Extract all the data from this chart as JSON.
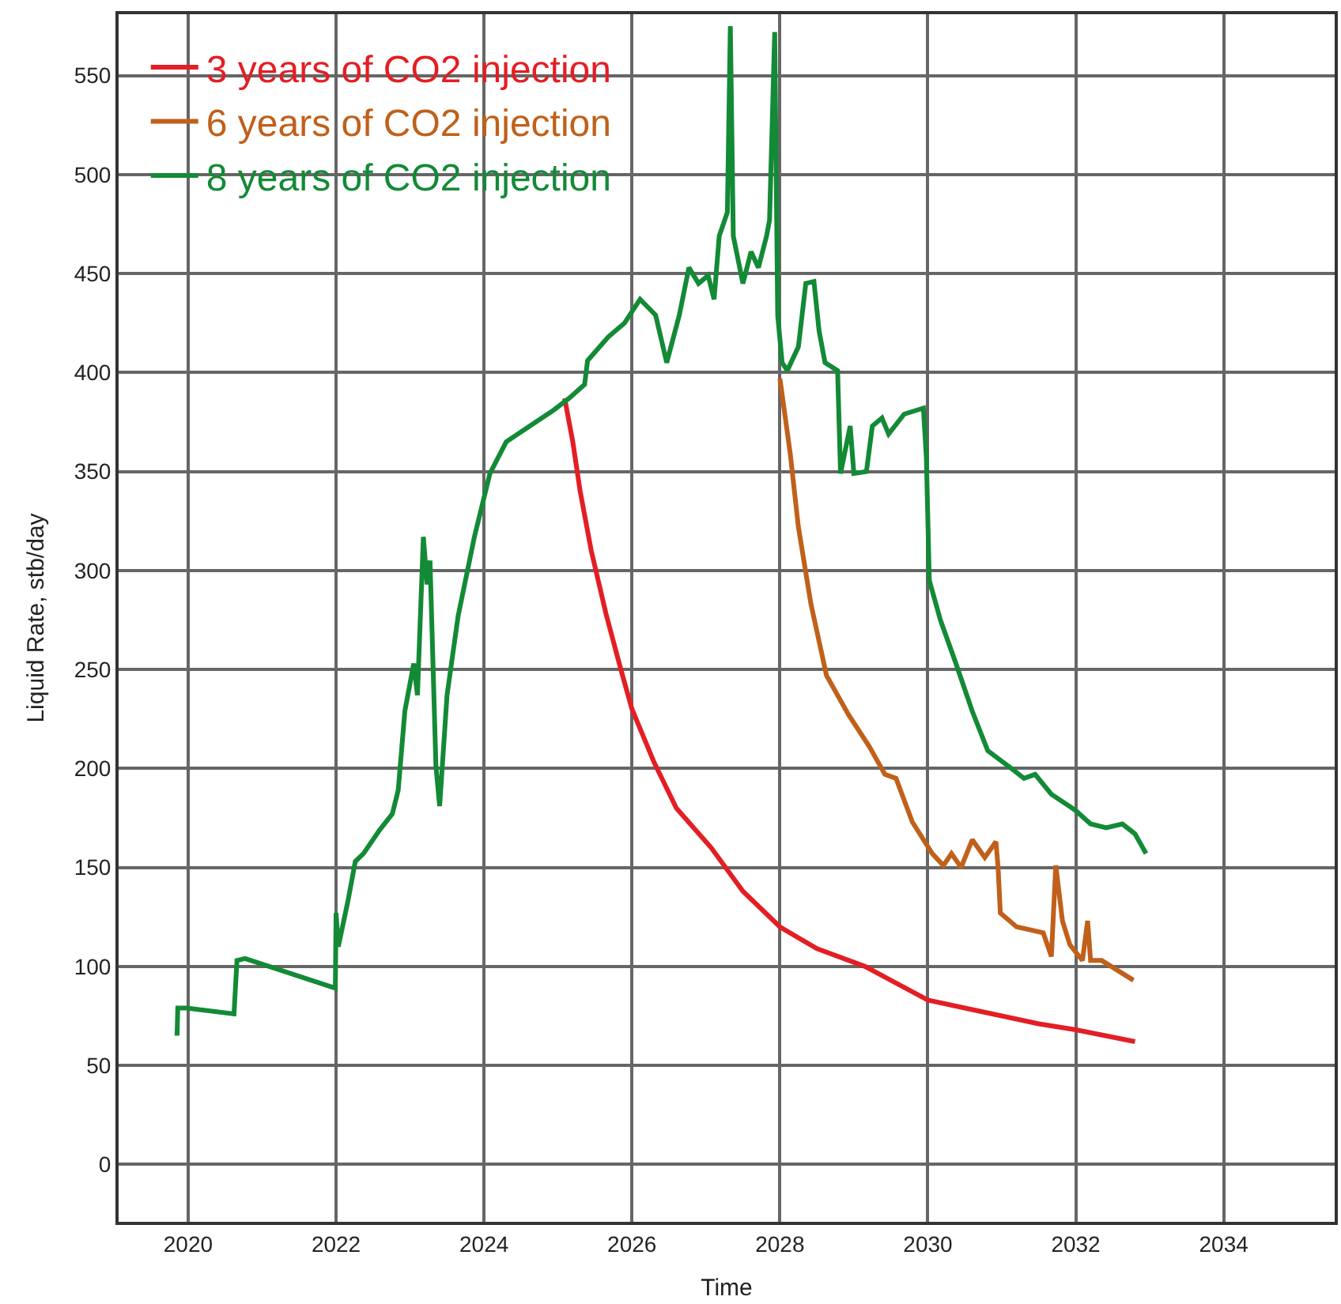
{
  "chart_data": {
    "type": "line",
    "xlabel": "Time",
    "ylabel": "Liquid Rate, stb/day",
    "xlim": [
      2019.06,
      2035.5
    ],
    "xticks": [
      2020,
      2022,
      2024,
      2026,
      2028,
      2030,
      2032,
      2034
    ],
    "ylim": [
      -29,
      581
    ],
    "yticks": [
      0,
      50,
      100,
      150,
      200,
      250,
      300,
      350,
      400,
      450,
      500,
      550
    ],
    "grid": true,
    "legend": "top left",
    "marker": "none",
    "line_style": "solid",
    "series": [
      {
        "name": "3 years of CO2 injection",
        "color": "#e31e24",
        "x": [
          2025.09,
          2025.2,
          2025.3,
          2025.45,
          2025.65,
          2025.85,
          2026.0,
          2026.3,
          2026.6,
          2027.07,
          2027.5,
          2028.0,
          2028.5,
          2029.15,
          2029.5,
          2030.0,
          2030.5,
          2031.0,
          2031.5,
          2032.0,
          2032.4,
          2032.8
        ],
        "values": [
          387,
          365,
          340,
          310,
          278,
          250,
          230,
          203,
          180,
          160,
          138,
          120,
          109,
          100,
          93,
          83,
          79,
          75,
          71,
          68,
          65,
          62
        ]
      },
      {
        "name": "6 years of CO2 injection",
        "color": "#c0601a",
        "x": [
          2028.0,
          2028.14,
          2028.25,
          2028.42,
          2028.63,
          2028.93,
          2029.21,
          2029.42,
          2029.57,
          2029.79,
          2030.06,
          2030.21,
          2030.32,
          2030.45,
          2030.6,
          2030.77,
          2030.92,
          2030.95,
          2030.98,
          2031.2,
          2031.56,
          2031.67,
          2031.73,
          2031.82,
          2031.92,
          2032.09,
          2032.16,
          2032.2,
          2032.35,
          2032.78
        ],
        "values": [
          397,
          359,
          322,
          283,
          247,
          227,
          211,
          197,
          195,
          173,
          157,
          151,
          157,
          150,
          164,
          155,
          163,
          150,
          127,
          120,
          117,
          105,
          151,
          123,
          111,
          103,
          123,
          103,
          103,
          93
        ]
      },
      {
        "name": "8 years of CO2 injection",
        "color": "#138a36",
        "x": [
          2019.85,
          2019.86,
          2019.98,
          2020.62,
          2020.66,
          2020.77,
          2021.99,
          2022.0,
          2022.03,
          2022.16,
          2022.26,
          2022.37,
          2022.59,
          2022.76,
          2022.84,
          2022.93,
          2023.01,
          2023.05,
          2023.1,
          2023.18,
          2023.23,
          2023.27,
          2023.35,
          2023.4,
          2023.5,
          2023.65,
          2023.87,
          2024.08,
          2024.3,
          2024.62,
          2024.94,
          2025.15,
          2025.36,
          2025.4,
          2025.68,
          2025.9,
          2026.11,
          2026.32,
          2026.47,
          2026.64,
          2026.77,
          2026.9,
          2027.03,
          2027.11,
          2027.18,
          2027.29,
          2027.33,
          2027.37,
          2027.5,
          2027.61,
          2027.71,
          2027.82,
          2027.86,
          2027.93,
          2027.97,
          2028.03,
          2028.1,
          2028.25,
          2028.35,
          2028.46,
          2028.53,
          2028.61,
          2028.78,
          2028.82,
          2028.95,
          2029.0,
          2029.17,
          2029.25,
          2029.38,
          2029.47,
          2029.68,
          2029.94,
          2029.98,
          2030.02,
          2030.17,
          2030.38,
          2030.6,
          2030.81,
          2031.13,
          2031.3,
          2031.45,
          2031.67,
          2031.99,
          2032.2,
          2032.41,
          2032.63,
          2032.8,
          2032.95
        ],
        "values": [
          65,
          79,
          79,
          76,
          103,
          104,
          89,
          127,
          110,
          133,
          153,
          157,
          169,
          177,
          189,
          229,
          245,
          253,
          237,
          317,
          293,
          305,
          201,
          181,
          237,
          277,
          317,
          349,
          365,
          373,
          381,
          387,
          394,
          406,
          418,
          425,
          437,
          429,
          405,
          429,
          453,
          445,
          449,
          437,
          469,
          481,
          575,
          469,
          445,
          461,
          453,
          469,
          477,
          572,
          429,
          405,
          401,
          413,
          445,
          446,
          421,
          405,
          401,
          349,
          373,
          349,
          350,
          373,
          377,
          369,
          379,
          382,
          357,
          295,
          275,
          253,
          229,
          209,
          200,
          195,
          197,
          187,
          179,
          172,
          170,
          172,
          167,
          157
        ]
      }
    ]
  }
}
